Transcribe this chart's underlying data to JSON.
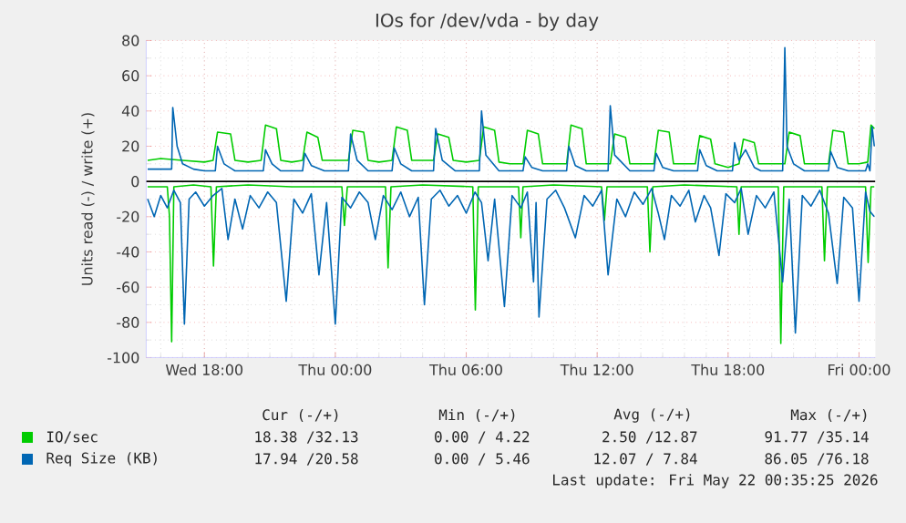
{
  "chart_data": {
    "type": "line",
    "title": "IOs for /dev/vda - by day",
    "ylabel": "Units read (-) / write (+)",
    "xlim": [
      "2026-05-20T15:20",
      "2026-05-22T00:45"
    ],
    "ylim": [
      -100,
      80
    ],
    "xticks": [
      {
        "value": "2026-05-20T18:00",
        "label": "Wed 18:00"
      },
      {
        "value": "2026-05-21T00:00",
        "label": "Thu 00:00"
      },
      {
        "value": "2026-05-21T06:00",
        "label": "Thu 06:00"
      },
      {
        "value": "2026-05-21T12:00",
        "label": "Thu 12:00"
      },
      {
        "value": "2026-05-21T18:00",
        "label": "Thu 18:00"
      },
      {
        "value": "2026-05-22T00:00",
        "label": "Fri 00:00"
      }
    ],
    "yticks": [
      -100,
      -80,
      -60,
      -40,
      -20,
      0,
      20,
      40,
      60,
      80
    ],
    "grid": true,
    "legend": "bottom",
    "marker": "none",
    "line_style": "solid",
    "ref_lines": [
      {
        "axis": "y",
        "value": 0,
        "color": "#000000"
      }
    ],
    "annotations": [
      "Cur (-/+)",
      "Min (-/+)",
      "Avg (-/+)",
      "Max (-/+)",
      "18.38 /32.13",
      "0.00 / 4.22",
      "2.50 /12.87",
      "91.77 /35.14",
      "17.94 /20.58",
      "0.00 / 5.46",
      "12.07 / 7.84",
      "86.05 /76.18",
      "Last update: Fri May 22 00:35:25 2026"
    ],
    "series": [
      {
        "name": "IO/sec",
        "color": "#00cc00",
        "x": [
          "2026-05-20T15:24",
          "2026-05-20T16:00",
          "2026-05-20T17:00",
          "2026-05-20T18:00",
          "2026-05-20T18:24",
          "2026-05-20T18:36",
          "2026-05-20T19:12",
          "2026-05-20T19:24",
          "2026-05-20T20:00",
          "2026-05-20T20:36",
          "2026-05-20T20:48",
          "2026-05-20T21:18",
          "2026-05-20T21:30",
          "2026-05-20T22:00",
          "2026-05-20T22:30",
          "2026-05-20T22:42",
          "2026-05-20T23:12",
          "2026-05-20T23:24",
          "2026-05-21T00:00",
          "2026-05-21T00:36",
          "2026-05-21T00:48",
          "2026-05-21T01:18",
          "2026-05-21T01:30",
          "2026-05-21T02:00",
          "2026-05-21T02:36",
          "2026-05-21T02:48",
          "2026-05-21T03:18",
          "2026-05-21T03:30",
          "2026-05-21T04:00",
          "2026-05-21T04:30",
          "2026-05-21T04:42",
          "2026-05-21T05:12",
          "2026-05-21T05:24",
          "2026-05-21T06:00",
          "2026-05-21T06:36",
          "2026-05-21T06:48",
          "2026-05-21T07:18",
          "2026-05-21T07:30",
          "2026-05-21T08:00",
          "2026-05-21T08:36",
          "2026-05-21T08:48",
          "2026-05-21T09:18",
          "2026-05-21T09:30",
          "2026-05-21T10:00",
          "2026-05-21T10:36",
          "2026-05-21T10:48",
          "2026-05-21T11:18",
          "2026-05-21T11:30",
          "2026-05-21T12:00",
          "2026-05-21T12:36",
          "2026-05-21T12:48",
          "2026-05-21T13:18",
          "2026-05-21T13:30",
          "2026-05-21T14:00",
          "2026-05-21T14:36",
          "2026-05-21T14:48",
          "2026-05-21T15:18",
          "2026-05-21T15:30",
          "2026-05-21T16:00",
          "2026-05-21T16:30",
          "2026-05-21T16:42",
          "2026-05-21T17:12",
          "2026-05-21T17:24",
          "2026-05-21T18:00",
          "2026-05-21T18:30",
          "2026-05-21T18:42",
          "2026-05-21T19:12",
          "2026-05-21T19:24",
          "2026-05-21T20:00",
          "2026-05-21T20:36",
          "2026-05-21T20:48",
          "2026-05-21T21:18",
          "2026-05-21T21:30",
          "2026-05-21T22:00",
          "2026-05-21T22:36",
          "2026-05-21T22:48",
          "2026-05-21T23:18",
          "2026-05-21T23:30",
          "2026-05-22T00:00",
          "2026-05-22T00:24",
          "2026-05-22T00:33",
          "2026-05-22T00:42"
        ],
        "values": [
          12,
          13,
          12,
          11,
          12,
          28,
          27,
          12,
          11,
          12,
          32,
          30,
          12,
          11,
          12,
          28,
          25,
          12,
          12,
          12,
          29,
          28,
          12,
          11,
          12,
          31,
          29,
          12,
          12,
          12,
          27,
          25,
          12,
          11,
          12,
          31,
          29,
          11,
          10,
          10,
          29,
          27,
          10,
          10,
          10,
          32,
          30,
          10,
          10,
          10,
          27,
          25,
          10,
          10,
          10,
          29,
          28,
          10,
          10,
          10,
          26,
          24,
          10,
          8,
          10,
          24,
          22,
          10,
          10,
          10,
          28,
          26,
          10,
          10,
          10,
          29,
          28,
          10,
          10,
          11,
          32,
          30
        ]
      },
      {
        "color": "#00cc00",
        "x": [
          "2026-05-20T15:24",
          "2026-05-20T16:18",
          "2026-05-20T16:24",
          "2026-05-20T16:30",
          "2026-05-20T16:36",
          "2026-05-20T17:30",
          "2026-05-20T18:18",
          "2026-05-20T18:25",
          "2026-05-20T18:33",
          "2026-05-20T20:00",
          "2026-05-20T22:00",
          "2026-05-21T00:18",
          "2026-05-21T00:25",
          "2026-05-21T00:33",
          "2026-05-21T02:18",
          "2026-05-21T02:25",
          "2026-05-21T02:33",
          "2026-05-21T04:00",
          "2026-05-21T06:18",
          "2026-05-21T06:25",
          "2026-05-21T06:33",
          "2026-05-21T08:24",
          "2026-05-21T08:30",
          "2026-05-21T08:36",
          "2026-05-21T10:00",
          "2026-05-21T12:12",
          "2026-05-21T12:20",
          "2026-05-21T12:27",
          "2026-05-21T14:18",
          "2026-05-21T14:25",
          "2026-05-21T14:33",
          "2026-05-21T16:00",
          "2026-05-21T18:24",
          "2026-05-21T18:30",
          "2026-05-21T18:36",
          "2026-05-21T20:18",
          "2026-05-21T20:25",
          "2026-05-21T20:33",
          "2026-05-21T22:18",
          "2026-05-21T22:25",
          "2026-05-21T22:33",
          "2026-05-22T00:18",
          "2026-05-22T00:25",
          "2026-05-22T00:33",
          "2026-05-22T00:42"
        ],
        "values": [
          -3,
          -3,
          -20,
          -91,
          -3,
          -2,
          -3,
          -48,
          -3,
          -2,
          -3,
          -3,
          -25,
          -3,
          -3,
          -49,
          -3,
          -2,
          -3,
          -73,
          -3,
          -3,
          -32,
          -3,
          -2,
          -3,
          -22,
          -3,
          -3,
          -40,
          -3,
          -2,
          -3,
          -30,
          -3,
          -3,
          -92,
          -3,
          -3,
          -45,
          -3,
          -3,
          -46,
          -3,
          -3
        ]
      },
      {
        "name": "Req Size (KB)",
        "color": "#0066b3",
        "x": [
          "2026-05-20T15:24",
          "2026-05-20T16:00",
          "2026-05-20T16:30",
          "2026-05-20T16:33",
          "2026-05-20T16:45",
          "2026-05-20T17:00",
          "2026-05-20T17:30",
          "2026-05-20T18:00",
          "2026-05-20T18:30",
          "2026-05-20T18:36",
          "2026-05-20T18:54",
          "2026-05-20T19:24",
          "2026-05-20T20:00",
          "2026-05-20T20:42",
          "2026-05-20T20:48",
          "2026-05-20T21:06",
          "2026-05-20T21:30",
          "2026-05-20T22:30",
          "2026-05-20T22:36",
          "2026-05-20T22:54",
          "2026-05-20T23:30",
          "2026-05-21T00:36",
          "2026-05-21T00:42",
          "2026-05-21T01:00",
          "2026-05-21T01:30",
          "2026-05-21T02:36",
          "2026-05-21T02:42",
          "2026-05-21T03:00",
          "2026-05-21T03:30",
          "2026-05-21T04:30",
          "2026-05-21T04:36",
          "2026-05-21T04:54",
          "2026-05-21T05:30",
          "2026-05-21T06:36",
          "2026-05-21T06:42",
          "2026-05-21T06:54",
          "2026-05-21T07:30",
          "2026-05-21T08:36",
          "2026-05-21T08:42",
          "2026-05-21T09:00",
          "2026-05-21T09:30",
          "2026-05-21T10:36",
          "2026-05-21T10:42",
          "2026-05-21T11:00",
          "2026-05-21T11:30",
          "2026-05-21T12:30",
          "2026-05-21T12:36",
          "2026-05-21T12:48",
          "2026-05-21T13:30",
          "2026-05-21T14:36",
          "2026-05-21T14:42",
          "2026-05-21T15:00",
          "2026-05-21T15:30",
          "2026-05-21T16:36",
          "2026-05-21T16:42",
          "2026-05-21T17:00",
          "2026-05-21T17:30",
          "2026-05-21T18:12",
          "2026-05-21T18:18",
          "2026-05-21T18:30",
          "2026-05-21T18:48",
          "2026-05-21T19:12",
          "2026-05-21T19:30",
          "2026-05-21T20:30",
          "2026-05-21T20:36",
          "2026-05-21T20:42",
          "2026-05-21T21:00",
          "2026-05-21T21:30",
          "2026-05-21T22:36",
          "2026-05-21T22:42",
          "2026-05-21T23:00",
          "2026-05-21T23:30",
          "2026-05-22T00:18",
          "2026-05-22T00:24",
          "2026-05-22T00:30",
          "2026-05-22T00:36",
          "2026-05-22T00:42"
        ],
        "values": [
          7,
          7,
          7,
          42,
          20,
          10,
          7,
          6,
          6,
          20,
          10,
          6,
          6,
          6,
          18,
          10,
          6,
          6,
          16,
          9,
          6,
          6,
          27,
          12,
          6,
          6,
          19,
          10,
          6,
          6,
          30,
          12,
          6,
          6,
          40,
          15,
          6,
          6,
          14,
          8,
          6,
          6,
          20,
          9,
          6,
          6,
          43,
          15,
          6,
          6,
          16,
          8,
          6,
          6,
          18,
          9,
          6,
          6,
          22,
          12,
          18,
          8,
          6,
          6,
          76,
          20,
          10,
          6,
          6,
          17,
          8,
          6,
          6,
          10,
          6,
          31,
          20
        ]
      },
      {
        "color": "#0066b3",
        "x": [
          "2026-05-20T15:24",
          "2026-05-20T15:42",
          "2026-05-20T16:00",
          "2026-05-20T16:18",
          "2026-05-20T16:36",
          "2026-05-20T16:54",
          "2026-05-20T17:05",
          "2026-05-20T17:18",
          "2026-05-20T17:36",
          "2026-05-20T18:00",
          "2026-05-20T18:24",
          "2026-05-20T18:48",
          "2026-05-20T19:05",
          "2026-05-20T19:24",
          "2026-05-20T19:45",
          "2026-05-20T20:06",
          "2026-05-20T20:30",
          "2026-05-20T20:54",
          "2026-05-20T21:18",
          "2026-05-20T21:45",
          "2026-05-20T22:06",
          "2026-05-20T22:30",
          "2026-05-20T22:54",
          "2026-05-20T23:15",
          "2026-05-20T23:36",
          "2026-05-21T00:00",
          "2026-05-21T00:18",
          "2026-05-21T00:42",
          "2026-05-21T01:06",
          "2026-05-21T01:30",
          "2026-05-21T01:50",
          "2026-05-21T02:12",
          "2026-05-21T02:36",
          "2026-05-21T03:00",
          "2026-05-21T03:24",
          "2026-05-21T03:48",
          "2026-05-21T04:05",
          "2026-05-21T04:24",
          "2026-05-21T04:48",
          "2026-05-21T05:12",
          "2026-05-21T05:36",
          "2026-05-21T06:00",
          "2026-05-21T06:24",
          "2026-05-21T06:42",
          "2026-05-21T07:00",
          "2026-05-21T07:18",
          "2026-05-21T07:45",
          "2026-05-21T08:06",
          "2026-05-21T08:30",
          "2026-05-21T08:48",
          "2026-05-21T09:05",
          "2026-05-21T09:12",
          "2026-05-21T09:20",
          "2026-05-21T09:42",
          "2026-05-21T10:06",
          "2026-05-21T10:30",
          "2026-05-21T11:00",
          "2026-05-21T11:24",
          "2026-05-21T11:48",
          "2026-05-21T12:12",
          "2026-05-21T12:30",
          "2026-05-21T12:54",
          "2026-05-21T13:18",
          "2026-05-21T13:42",
          "2026-05-21T14:06",
          "2026-05-21T14:30",
          "2026-05-21T14:48",
          "2026-05-21T15:05",
          "2026-05-21T15:24",
          "2026-05-21T15:48",
          "2026-05-21T16:12",
          "2026-05-21T16:30",
          "2026-05-21T16:54",
          "2026-05-21T17:12",
          "2026-05-21T17:35",
          "2026-05-21T17:54",
          "2026-05-21T18:18",
          "2026-05-21T18:36",
          "2026-05-21T18:55",
          "2026-05-21T19:18",
          "2026-05-21T19:42",
          "2026-05-21T20:06",
          "2026-05-21T20:30",
          "2026-05-21T20:48",
          "2026-05-21T21:05",
          "2026-05-21T21:24",
          "2026-05-21T21:48",
          "2026-05-21T22:12",
          "2026-05-21T22:36",
          "2026-05-21T23:00",
          "2026-05-21T23:18",
          "2026-05-21T23:42",
          "2026-05-22T00:00",
          "2026-05-22T00:18",
          "2026-05-22T00:30",
          "2026-05-22T00:42"
        ],
        "values": [
          -10,
          -20,
          -8,
          -15,
          -5,
          -12,
          -81,
          -10,
          -6,
          -14,
          -8,
          -4,
          -33,
          -10,
          -27,
          -8,
          -15,
          -6,
          -12,
          -68,
          -10,
          -18,
          -7,
          -53,
          -12,
          -81,
          -9,
          -15,
          -6,
          -12,
          -33,
          -8,
          -16,
          -6,
          -20,
          -9,
          -70,
          -10,
          -5,
          -14,
          -8,
          -18,
          -6,
          -12,
          -45,
          -10,
          -71,
          -8,
          -15,
          -6,
          -57,
          -12,
          -77,
          -10,
          -5,
          -15,
          -32,
          -8,
          -14,
          -5,
          -53,
          -10,
          -20,
          -6,
          -13,
          -4,
          -18,
          -33,
          -8,
          -14,
          -5,
          -23,
          -8,
          -15,
          -42,
          -7,
          -12,
          -4,
          -30,
          -8,
          -15,
          -6,
          -57,
          -10,
          -86,
          -8,
          -14,
          -5,
          -18,
          -58,
          -9,
          -15,
          -68,
          -6,
          -17,
          -20
        ]
      }
    ]
  }
}
